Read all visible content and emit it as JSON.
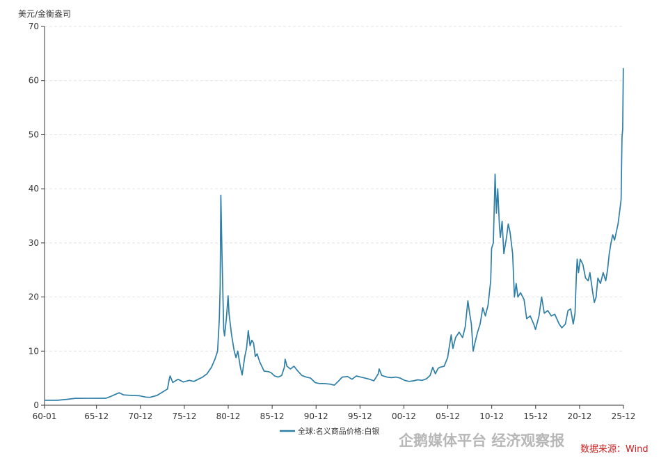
{
  "chart_data": {
    "type": "line",
    "ylabel": "美元/金衡盎司",
    "ylim": [
      0,
      70
    ],
    "yticks": [
      "0",
      "10",
      "20",
      "30",
      "40",
      "50",
      "60",
      "70"
    ],
    "xlim": [
      1960.0,
      2025.917
    ],
    "xticks": [
      {
        "x": 1960.0,
        "label": "60-01"
      },
      {
        "x": 1965.917,
        "label": "65-12"
      },
      {
        "x": 1970.917,
        "label": "70-12"
      },
      {
        "x": 1975.917,
        "label": "75-12"
      },
      {
        "x": 1980.917,
        "label": "80-12"
      },
      {
        "x": 1985.917,
        "label": "85-12"
      },
      {
        "x": 1990.917,
        "label": "90-12"
      },
      {
        "x": 1995.917,
        "label": "95-12"
      },
      {
        "x": 2000.917,
        "label": "00-12"
      },
      {
        "x": 2005.917,
        "label": "05-12"
      },
      {
        "x": 2010.917,
        "label": "10-12"
      },
      {
        "x": 2015.917,
        "label": "15-12"
      },
      {
        "x": 2020.917,
        "label": "20-12"
      },
      {
        "x": 2025.917,
        "label": "25-12"
      }
    ],
    "grid": true,
    "legend_position": "bottom-center",
    "series": [
      {
        "name": "全球:名义商品价格:白银",
        "color": "#2e7ea6",
        "points": [
          [
            1960.0,
            0.91
          ],
          [
            1961.5,
            0.92
          ],
          [
            1962.5,
            1.08
          ],
          [
            1963.5,
            1.28
          ],
          [
            1967.0,
            1.29
          ],
          [
            1967.5,
            1.6
          ],
          [
            1968.2,
            2.1
          ],
          [
            1968.5,
            2.3
          ],
          [
            1969.0,
            1.9
          ],
          [
            1970.0,
            1.8
          ],
          [
            1970.8,
            1.75
          ],
          [
            1971.5,
            1.5
          ],
          [
            1972.0,
            1.45
          ],
          [
            1972.8,
            1.8
          ],
          [
            1973.5,
            2.5
          ],
          [
            1974.0,
            3.0
          ],
          [
            1974.2,
            4.8
          ],
          [
            1974.3,
            5.4
          ],
          [
            1974.6,
            4.2
          ],
          [
            1975.2,
            4.8
          ],
          [
            1975.8,
            4.3
          ],
          [
            1976.5,
            4.6
          ],
          [
            1977.0,
            4.4
          ],
          [
            1977.5,
            4.8
          ],
          [
            1978.0,
            5.2
          ],
          [
            1978.5,
            5.8
          ],
          [
            1979.0,
            7.0
          ],
          [
            1979.4,
            8.5
          ],
          [
            1979.7,
            10.0
          ],
          [
            1979.9,
            16.0
          ],
          [
            1980.0,
            22.0
          ],
          [
            1980.08,
            38.8
          ],
          [
            1980.2,
            28.0
          ],
          [
            1980.4,
            14.0
          ],
          [
            1980.5,
            12.8
          ],
          [
            1980.7,
            16.0
          ],
          [
            1980.9,
            20.2
          ],
          [
            1981.0,
            17.0
          ],
          [
            1981.3,
            13.0
          ],
          [
            1981.6,
            10.0
          ],
          [
            1981.8,
            8.8
          ],
          [
            1982.0,
            10.0
          ],
          [
            1982.3,
            7.0
          ],
          [
            1982.5,
            5.6
          ],
          [
            1982.8,
            9.0
          ],
          [
            1983.0,
            10.5
          ],
          [
            1983.2,
            13.8
          ],
          [
            1983.4,
            11.0
          ],
          [
            1983.6,
            12.0
          ],
          [
            1983.8,
            11.5
          ],
          [
            1984.0,
            9.0
          ],
          [
            1984.2,
            9.5
          ],
          [
            1984.5,
            8.0
          ],
          [
            1984.8,
            7.0
          ],
          [
            1985.0,
            6.3
          ],
          [
            1985.5,
            6.2
          ],
          [
            1985.8,
            6.0
          ],
          [
            1986.2,
            5.4
          ],
          [
            1986.6,
            5.2
          ],
          [
            1987.0,
            5.5
          ],
          [
            1987.3,
            7.0
          ],
          [
            1987.4,
            8.5
          ],
          [
            1987.6,
            7.2
          ],
          [
            1988.0,
            6.7
          ],
          [
            1988.4,
            7.2
          ],
          [
            1988.8,
            6.4
          ],
          [
            1989.3,
            5.5
          ],
          [
            1989.8,
            5.2
          ],
          [
            1990.3,
            5.0
          ],
          [
            1990.8,
            4.2
          ],
          [
            1991.3,
            4.0
          ],
          [
            1991.8,
            4.0
          ],
          [
            1992.5,
            3.9
          ],
          [
            1993.0,
            3.7
          ],
          [
            1993.5,
            4.5
          ],
          [
            1993.9,
            5.2
          ],
          [
            1994.5,
            5.3
          ],
          [
            1995.0,
            4.8
          ],
          [
            1995.5,
            5.4
          ],
          [
            1996.0,
            5.2
          ],
          [
            1996.5,
            5.0
          ],
          [
            1997.0,
            4.8
          ],
          [
            1997.5,
            4.5
          ],
          [
            1998.0,
            5.8
          ],
          [
            1998.1,
            6.7
          ],
          [
            1998.4,
            5.5
          ],
          [
            1999.0,
            5.2
          ],
          [
            1999.5,
            5.1
          ],
          [
            2000.0,
            5.2
          ],
          [
            2000.5,
            5.0
          ],
          [
            2001.0,
            4.6
          ],
          [
            2001.5,
            4.4
          ],
          [
            2002.0,
            4.5
          ],
          [
            2002.5,
            4.7
          ],
          [
            2003.0,
            4.6
          ],
          [
            2003.5,
            4.9
          ],
          [
            2003.9,
            5.5
          ],
          [
            2004.2,
            7.0
          ],
          [
            2004.5,
            5.8
          ],
          [
            2004.8,
            6.8
          ],
          [
            2005.0,
            7.0
          ],
          [
            2005.5,
            7.2
          ],
          [
            2005.9,
            8.8
          ],
          [
            2006.3,
            13.0
          ],
          [
            2006.5,
            10.5
          ],
          [
            2006.8,
            12.5
          ],
          [
            2007.2,
            13.5
          ],
          [
            2007.6,
            12.5
          ],
          [
            2007.9,
            14.5
          ],
          [
            2008.2,
            19.3
          ],
          [
            2008.4,
            17.0
          ],
          [
            2008.6,
            15.0
          ],
          [
            2008.8,
            10.0
          ],
          [
            2009.0,
            11.5
          ],
          [
            2009.3,
            13.5
          ],
          [
            2009.6,
            15.0
          ],
          [
            2009.9,
            18.0
          ],
          [
            2010.2,
            16.5
          ],
          [
            2010.5,
            18.5
          ],
          [
            2010.8,
            23.0
          ],
          [
            2010.9,
            29.0
          ],
          [
            2011.1,
            30.0
          ],
          [
            2011.3,
            42.7
          ],
          [
            2011.45,
            35.5
          ],
          [
            2011.6,
            40.0
          ],
          [
            2011.8,
            33.0
          ],
          [
            2011.9,
            31.0
          ],
          [
            2012.1,
            34.0
          ],
          [
            2012.3,
            28.0
          ],
          [
            2012.6,
            31.0
          ],
          [
            2012.8,
            33.5
          ],
          [
            2013.0,
            32.0
          ],
          [
            2013.3,
            28.0
          ],
          [
            2013.5,
            20.0
          ],
          [
            2013.7,
            22.5
          ],
          [
            2013.9,
            20.0
          ],
          [
            2014.2,
            20.8
          ],
          [
            2014.6,
            19.5
          ],
          [
            2014.9,
            16.0
          ],
          [
            2015.3,
            16.5
          ],
          [
            2015.7,
            15.0
          ],
          [
            2015.9,
            14.0
          ],
          [
            2016.3,
            16.5
          ],
          [
            2016.6,
            20.0
          ],
          [
            2016.9,
            17.0
          ],
          [
            2017.3,
            17.5
          ],
          [
            2017.7,
            16.5
          ],
          [
            2018.1,
            16.8
          ],
          [
            2018.6,
            15.0
          ],
          [
            2018.9,
            14.3
          ],
          [
            2019.3,
            15.0
          ],
          [
            2019.6,
            17.5
          ],
          [
            2019.9,
            17.8
          ],
          [
            2020.2,
            15.0
          ],
          [
            2020.4,
            17.0
          ],
          [
            2020.55,
            24.0
          ],
          [
            2020.65,
            27.0
          ],
          [
            2020.8,
            24.5
          ],
          [
            2021.0,
            27.0
          ],
          [
            2021.3,
            26.0
          ],
          [
            2021.6,
            23.5
          ],
          [
            2021.9,
            23.0
          ],
          [
            2022.1,
            24.5
          ],
          [
            2022.4,
            21.0
          ],
          [
            2022.6,
            19.0
          ],
          [
            2022.8,
            20.0
          ],
          [
            2023.0,
            23.5
          ],
          [
            2023.3,
            22.5
          ],
          [
            2023.6,
            24.5
          ],
          [
            2023.9,
            23.0
          ],
          [
            2024.1,
            25.0
          ],
          [
            2024.3,
            28.0
          ],
          [
            2024.5,
            30.0
          ],
          [
            2024.7,
            31.5
          ],
          [
            2024.9,
            30.5
          ],
          [
            2025.1,
            32.0
          ],
          [
            2025.3,
            33.5
          ],
          [
            2025.5,
            36.0
          ],
          [
            2025.65,
            38.0
          ],
          [
            2025.75,
            49.5
          ],
          [
            2025.83,
            51.0
          ],
          [
            2025.9,
            62.3
          ]
        ]
      }
    ],
    "source_note": "数据来源：Wind",
    "watermark": "企鹅媒体平台 经济观察报"
  }
}
